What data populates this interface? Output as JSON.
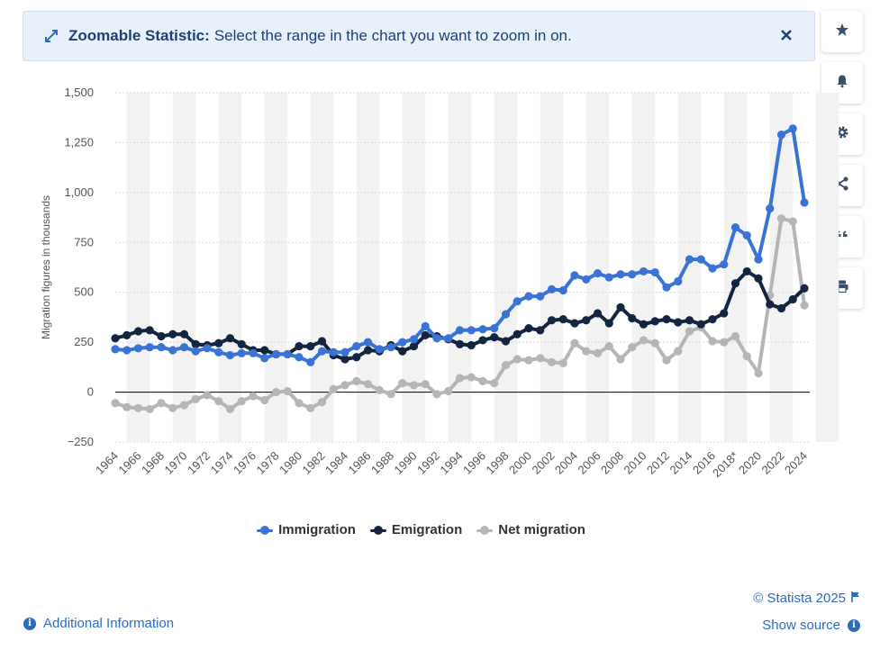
{
  "banner": {
    "title": "Zoomable Statistic:",
    "description": "Select the range in the chart you want to zoom in on.",
    "expand_icon": "expand-arrows-icon",
    "close_icon": "close-icon"
  },
  "toolbar": [
    {
      "name": "favorite",
      "icon": "star-icon"
    },
    {
      "name": "notification",
      "icon": "bell-icon"
    },
    {
      "name": "settings",
      "icon": "gear-icon"
    },
    {
      "name": "share",
      "icon": "share-icon"
    },
    {
      "name": "cite",
      "icon": "quote-icon"
    },
    {
      "name": "print",
      "icon": "printer-icon"
    }
  ],
  "legend": [
    {
      "label": "Immigration",
      "color": "#3a73d6"
    },
    {
      "label": "Emigration",
      "color": "#13253f"
    },
    {
      "label": "Net migration",
      "color": "#b5b5b5"
    }
  ],
  "footer": {
    "additional_info": "Additional Information",
    "copyright": "© Statista 2025",
    "show_source": "Show source"
  },
  "chart_data": {
    "type": "line",
    "title": "",
    "xlabel": "",
    "ylabel": "Migration figures in thousands",
    "ylim": [
      -250,
      1500
    ],
    "yticks": [
      -250,
      0,
      250,
      500,
      750,
      1000,
      1250,
      1500
    ],
    "ytick_labels": [
      "−250",
      "0",
      "250",
      "500",
      "750",
      "1,000",
      "1,250",
      "1,500"
    ],
    "x": [
      1964,
      1965,
      1966,
      1967,
      1968,
      1969,
      1970,
      1971,
      1972,
      1973,
      1974,
      1975,
      1976,
      1977,
      1978,
      1979,
      1980,
      1981,
      1982,
      1983,
      1984,
      1985,
      1986,
      1987,
      1988,
      1989,
      1990,
      1991,
      1992,
      1993,
      1994,
      1995,
      1996,
      1997,
      1998,
      1999,
      2000,
      2001,
      2002,
      2003,
      2004,
      2005,
      2006,
      2007,
      2008,
      2009,
      2010,
      2011,
      2012,
      2013,
      2014,
      2015,
      2016,
      2017,
      2018,
      2019,
      2020,
      2021,
      2022,
      2023,
      2024
    ],
    "x_tick_labels": [
      "1964",
      "1966",
      "1968",
      "1970",
      "1972",
      "1974",
      "1976",
      "1978",
      "1980",
      "1982",
      "1984",
      "1986",
      "1988",
      "1990",
      "1992",
      "1994",
      "1996",
      "1998",
      "2000",
      "2002",
      "2004",
      "2006",
      "2008",
      "2010",
      "2012",
      "2014",
      "2016",
      "2018*",
      "2020",
      "2022",
      "2024"
    ],
    "series": [
      {
        "name": "Immigration",
        "color": "#3a73d6",
        "values": [
          215,
          210,
          220,
          225,
          225,
          210,
          225,
          205,
          220,
          200,
          185,
          195,
          195,
          170,
          190,
          190,
          175,
          150,
          205,
          200,
          200,
          230,
          250,
          215,
          225,
          250,
          265,
          330,
          270,
          270,
          310,
          310,
          315,
          320,
          390,
          455,
          480,
          480,
          515,
          510,
          585,
          565,
          595,
          575,
          590,
          590,
          605,
          600,
          525,
          555,
          665,
          665,
          620,
          640,
          825,
          785,
          665,
          920,
          1290,
          1320,
          950
        ]
      },
      {
        "name": "Emigration",
        "color": "#13253f",
        "values": [
          270,
          285,
          305,
          310,
          280,
          290,
          290,
          240,
          235,
          245,
          270,
          240,
          210,
          210,
          190,
          190,
          230,
          230,
          255,
          185,
          165,
          175,
          210,
          205,
          235,
          205,
          230,
          285,
          280,
          265,
          240,
          235,
          260,
          275,
          255,
          290,
          320,
          310,
          360,
          365,
          345,
          360,
          395,
          345,
          425,
          370,
          340,
          355,
          365,
          350,
          360,
          340,
          365,
          395,
          545,
          605,
          570,
          440,
          420,
          465,
          520
        ]
      },
      {
        "name": "Net migration",
        "color": "#b5b5b5",
        "values": [
          -55,
          -75,
          -80,
          -85,
          -55,
          -80,
          -65,
          -35,
          -15,
          -45,
          -85,
          -45,
          -20,
          -40,
          0,
          5,
          -55,
          -80,
          -50,
          15,
          35,
          55,
          40,
          10,
          -10,
          45,
          35,
          40,
          -10,
          5,
          70,
          75,
          55,
          45,
          135,
          165,
          160,
          170,
          150,
          145,
          245,
          205,
          195,
          230,
          165,
          225,
          260,
          245,
          160,
          205,
          305,
          325,
          255,
          250,
          280,
          180,
          95,
          485,
          870,
          855,
          435
        ]
      }
    ]
  }
}
